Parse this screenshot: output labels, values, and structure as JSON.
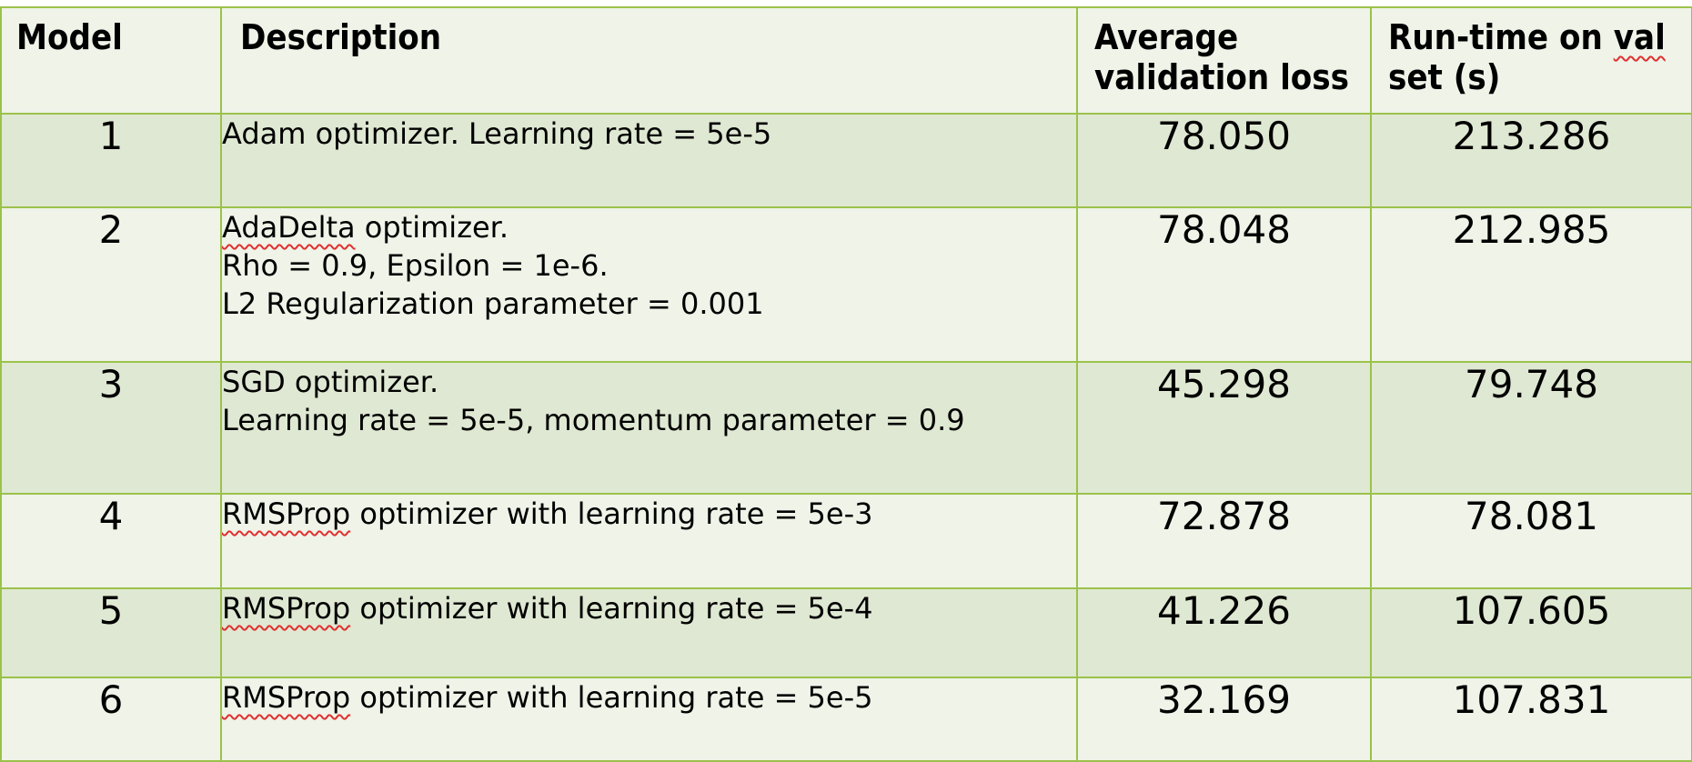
{
  "table": {
    "headers": {
      "model": "Model",
      "description": "Description",
      "loss_line1": "Average",
      "loss_line2": "validation loss",
      "time_line1_a": "Run-time on ",
      "time_line1_b": "val",
      "time_line2": "set (s)"
    },
    "rows": [
      {
        "model": "1",
        "desc_a_flagged": "",
        "desc_a_rest": "Adam optimizer. Learning rate = 5e-5",
        "desc_b": "",
        "desc_c": "",
        "loss": "78.050",
        "runtime": "213.286"
      },
      {
        "model": "2",
        "desc_a_flagged": "AdaDelta",
        "desc_a_rest": " optimizer.",
        "desc_b": "Rho = 0.9, Epsilon = 1e-6.",
        "desc_c": "L2 Regularization parameter = 0.001",
        "loss": "78.048",
        "runtime": "212.985"
      },
      {
        "model": "3",
        "desc_a_flagged": "",
        "desc_a_rest": "SGD optimizer.",
        "desc_b": "Learning rate = 5e-5, momentum parameter = 0.9",
        "desc_c": "",
        "loss": "45.298",
        "runtime": "79.748"
      },
      {
        "model": "4",
        "desc_a_flagged": "RMSProp",
        "desc_a_rest": " optimizer with learning rate = 5e-3",
        "desc_b": "",
        "desc_c": "",
        "loss": "72.878",
        "runtime": "78.081"
      },
      {
        "model": "5",
        "desc_a_flagged": "RMSProp",
        "desc_a_rest": " optimizer with learning rate = 5e-4",
        "desc_b": "",
        "desc_c": "",
        "loss": "41.226",
        "runtime": "107.605"
      },
      {
        "model": "6",
        "desc_a_flagged": "RMSProp",
        "desc_a_rest": " optimizer with learning rate = 5e-5",
        "desc_b": "",
        "desc_c": "",
        "loss": "32.169",
        "runtime": "107.831"
      }
    ]
  },
  "colors": {
    "border": "#9bc24a",
    "row_dark": "#dfe8d2",
    "row_light": "#eff3e8",
    "spellcheck": "#e03030"
  }
}
